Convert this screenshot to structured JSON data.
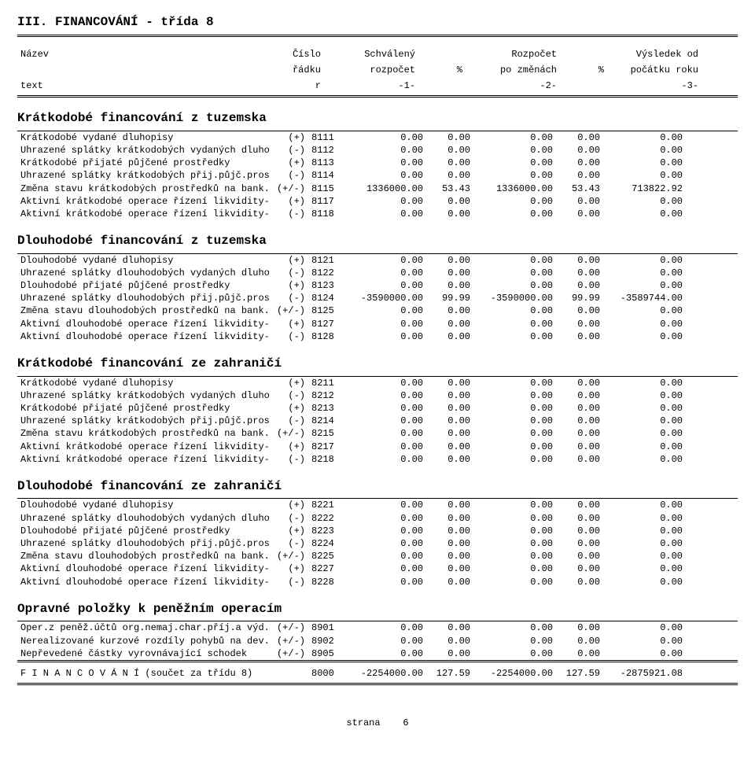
{
  "title": "III. FINANCOVÁNÍ - třída 8",
  "column_header": {
    "l1": {
      "label": "Název",
      "rnum": "Číslo",
      "amt1": "Schválený",
      "pct1": "",
      "amt2": "Rozpočet",
      "pct2": "",
      "amt3": "Výsledek od"
    },
    "l2": {
      "label": "",
      "rnum": "řádku",
      "amt1": "rozpočet",
      "pct1": "%",
      "amt2": "po změnách",
      "pct2": "%",
      "amt3": "počátku roku"
    },
    "l3": {
      "label": "text",
      "rnum": "r",
      "amt1": "-1-",
      "pct1": "",
      "amt2": "-2-",
      "pct2": "",
      "amt3": "-3-"
    }
  },
  "sections": [
    {
      "name": "kratkodobe-tuzemska",
      "title": "Krátkodobé financování z tuzemska",
      "rows": [
        {
          "label": "Krátkodobé vydané dluhopisy",
          "sign": "(+)",
          "r": "8111",
          "a1": "0.00",
          "p1": "0.00",
          "a2": "0.00",
          "p2": "0.00",
          "a3": "0.00"
        },
        {
          "label": "Uhrazené splátky krátkodobých vydaných dluhopisů",
          "sign": "(-)",
          "r": "8112",
          "a1": "0.00",
          "p1": "0.00",
          "a2": "0.00",
          "p2": "0.00",
          "a3": "0.00"
        },
        {
          "label": "Krátkodobé přijaté půjčené prostředky",
          "sign": "(+)",
          "r": "8113",
          "a1": "0.00",
          "p1": "0.00",
          "a2": "0.00",
          "p2": "0.00",
          "a3": "0.00"
        },
        {
          "label": "Uhrazené splátky krátkodobých přij.půjč.prostředků",
          "sign": "(-)",
          "r": "8114",
          "a1": "0.00",
          "p1": "0.00",
          "a2": "0.00",
          "p2": "0.00",
          "a3": "0.00"
        },
        {
          "label": "Změna stavu krátkodobých prostředků na bank.účtech",
          "sign": "(+/-)",
          "r": "8115",
          "a1": "1336000.00",
          "p1": "53.43",
          "a2": "1336000.00",
          "p2": "53.43",
          "a3": "713822.92"
        },
        {
          "label": "Aktivní krátkodobé operace řízení likvidity-příjmy",
          "sign": "(+)",
          "r": "8117",
          "a1": "0.00",
          "p1": "0.00",
          "a2": "0.00",
          "p2": "0.00",
          "a3": "0.00"
        },
        {
          "label": "Aktivní krátkodobé operace řízení likvidity-výdaje",
          "sign": "(-)",
          "r": "8118",
          "a1": "0.00",
          "p1": "0.00",
          "a2": "0.00",
          "p2": "0.00",
          "a3": "0.00"
        }
      ]
    },
    {
      "name": "dlouhodobe-tuzemska",
      "title": "Dlouhodobé financování z tuzemska",
      "rows": [
        {
          "label": "Dlouhodobé vydané dluhopisy",
          "sign": "(+)",
          "r": "8121",
          "a1": "0.00",
          "p1": "0.00",
          "a2": "0.00",
          "p2": "0.00",
          "a3": "0.00"
        },
        {
          "label": "Uhrazené splátky dlouhodobých vydaných dluhopisů",
          "sign": "(-)",
          "r": "8122",
          "a1": "0.00",
          "p1": "0.00",
          "a2": "0.00",
          "p2": "0.00",
          "a3": "0.00"
        },
        {
          "label": "Dlouhodobé přijaté půjčené prostředky",
          "sign": "(+)",
          "r": "8123",
          "a1": "0.00",
          "p1": "0.00",
          "a2": "0.00",
          "p2": "0.00",
          "a3": "0.00"
        },
        {
          "label": "Uhrazené splátky dlouhodobých přij.půjč.prostředků",
          "sign": "(-)",
          "r": "8124",
          "a1": "-3590000.00",
          "p1": "99.99",
          "a2": "-3590000.00",
          "p2": "99.99",
          "a3": "-3589744.00"
        },
        {
          "label": "Změna stavu dlouhodobých prostředků na bank.účtech",
          "sign": "(+/-)",
          "r": "8125",
          "a1": "0.00",
          "p1": "0.00",
          "a2": "0.00",
          "p2": "0.00",
          "a3": "0.00"
        },
        {
          "label": "Aktivní dlouhodobé operace řízení likvidity-příjmy",
          "sign": "(+)",
          "r": "8127",
          "a1": "0.00",
          "p1": "0.00",
          "a2": "0.00",
          "p2": "0.00",
          "a3": "0.00"
        },
        {
          "label": "Aktivní dlouhodobé operace řízení likvidity-výdaje",
          "sign": "(-)",
          "r": "8128",
          "a1": "0.00",
          "p1": "0.00",
          "a2": "0.00",
          "p2": "0.00",
          "a3": "0.00"
        }
      ]
    },
    {
      "name": "kratkodobe-zahranici",
      "title": "Krátkodobé financování ze zahraničí",
      "rows": [
        {
          "label": "Krátkodobé vydané dluhopisy",
          "sign": "(+)",
          "r": "8211",
          "a1": "0.00",
          "p1": "0.00",
          "a2": "0.00",
          "p2": "0.00",
          "a3": "0.00"
        },
        {
          "label": "Uhrazené splátky krátkodobých vydaných dluhopisů",
          "sign": "(-)",
          "r": "8212",
          "a1": "0.00",
          "p1": "0.00",
          "a2": "0.00",
          "p2": "0.00",
          "a3": "0.00"
        },
        {
          "label": "Krátkodobé přijaté půjčené prostředky",
          "sign": "(+)",
          "r": "8213",
          "a1": "0.00",
          "p1": "0.00",
          "a2": "0.00",
          "p2": "0.00",
          "a3": "0.00"
        },
        {
          "label": "Uhrazené splátky krátkodobých přij.půjč.prostředků",
          "sign": "(-)",
          "r": "8214",
          "a1": "0.00",
          "p1": "0.00",
          "a2": "0.00",
          "p2": "0.00",
          "a3": "0.00"
        },
        {
          "label": "Změna stavu krátkodobých prostředků na bank.účtech",
          "sign": "(+/-)",
          "r": "8215",
          "a1": "0.00",
          "p1": "0.00",
          "a2": "0.00",
          "p2": "0.00",
          "a3": "0.00"
        },
        {
          "label": "Aktivní krátkodobé operace řízení likvidity-příjmy",
          "sign": "(+)",
          "r": "8217",
          "a1": "0.00",
          "p1": "0.00",
          "a2": "0.00",
          "p2": "0.00",
          "a3": "0.00"
        },
        {
          "label": "Aktivní krátkodobé operace řízení likvidity-výdaje",
          "sign": "(-)",
          "r": "8218",
          "a1": "0.00",
          "p1": "0.00",
          "a2": "0.00",
          "p2": "0.00",
          "a3": "0.00"
        }
      ]
    },
    {
      "name": "dlouhodobe-zahranici",
      "title": "Dlouhodobé financování ze zahraničí",
      "rows": [
        {
          "label": "Dlouhodobé vydané dluhopisy",
          "sign": "(+)",
          "r": "8221",
          "a1": "0.00",
          "p1": "0.00",
          "a2": "0.00",
          "p2": "0.00",
          "a3": "0.00"
        },
        {
          "label": "Uhrazené splátky dlouhodobých vydaných dluhopisů",
          "sign": "(-)",
          "r": "8222",
          "a1": "0.00",
          "p1": "0.00",
          "a2": "0.00",
          "p2": "0.00",
          "a3": "0.00"
        },
        {
          "label": "Dlouhodobé přijaté půjčené prostředky",
          "sign": "(+)",
          "r": "8223",
          "a1": "0.00",
          "p1": "0.00",
          "a2": "0.00",
          "p2": "0.00",
          "a3": "0.00"
        },
        {
          "label": "Uhrazené splátky dlouhodobých přij.půjč.prostředků",
          "sign": "(-)",
          "r": "8224",
          "a1": "0.00",
          "p1": "0.00",
          "a2": "0.00",
          "p2": "0.00",
          "a3": "0.00"
        },
        {
          "label": "Změna stavu dlouhodobých prostředků na bank.účtech",
          "sign": "(+/-)",
          "r": "8225",
          "a1": "0.00",
          "p1": "0.00",
          "a2": "0.00",
          "p2": "0.00",
          "a3": "0.00"
        },
        {
          "label": "Aktivní dlouhodobé operace řízení likvidity-příjmy",
          "sign": "(+)",
          "r": "8227",
          "a1": "0.00",
          "p1": "0.00",
          "a2": "0.00",
          "p2": "0.00",
          "a3": "0.00"
        },
        {
          "label": "Aktivní dlouhodobé operace řízení likvidity-výdaje",
          "sign": "(-)",
          "r": "8228",
          "a1": "0.00",
          "p1": "0.00",
          "a2": "0.00",
          "p2": "0.00",
          "a3": "0.00"
        }
      ]
    },
    {
      "name": "opravne-polozky",
      "title": "Opravné položky k peněžním operacím",
      "rows": [
        {
          "label": "Oper.z peněž.účtů org.nemaj.char.příj.a výd.vl.sekt",
          "sign": "(+/-)",
          "r": "8901",
          "a1": "0.00",
          "p1": "0.00",
          "a2": "0.00",
          "p2": "0.00",
          "a3": "0.00"
        },
        {
          "label": "Nerealizované kurzové rozdíly pohybů na dev.účtech",
          "sign": "(+/-)",
          "r": "8902",
          "a1": "0.00",
          "p1": "0.00",
          "a2": "0.00",
          "p2": "0.00",
          "a3": "0.00"
        },
        {
          "label": "Nepřevedené částky vyrovnávající schodek",
          "sign": "(+/-)",
          "r": "8905",
          "a1": "0.00",
          "p1": "0.00",
          "a2": "0.00",
          "p2": "0.00",
          "a3": "0.00"
        }
      ]
    }
  ],
  "total_row": {
    "label": "F I N A N C O V Á N Í  (součet za třídu 8)",
    "sign": "",
    "r": "8000",
    "a1": "-2254000.00",
    "p1": "127.59",
    "a2": "-2254000.00",
    "p2": "127.59",
    "a3": "-2875921.08"
  },
  "footer": {
    "page_label": "strana",
    "page_num": "6"
  }
}
